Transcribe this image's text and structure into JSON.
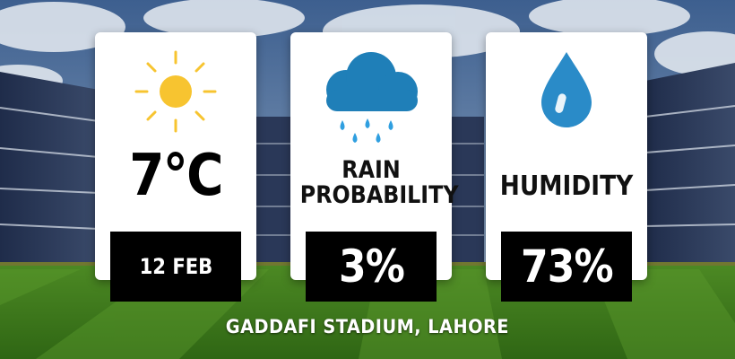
{
  "colors": {
    "sun": "#f7c430",
    "cloud": "#1f7fb8",
    "drop": "#2a8bc8",
    "badge": "#000000",
    "grass": "#3f7f1c"
  },
  "icons": [
    "sun-icon",
    "rain-cloud-icon",
    "water-drop-icon"
  ],
  "cards": {
    "temperature": {
      "value": "7°C",
      "date": "12 FEB"
    },
    "rain": {
      "title_line1": "RAIN",
      "title_line2": "PROBABILITY",
      "value": "3%"
    },
    "humidity": {
      "title": "HUMIDITY",
      "value": "73%"
    }
  },
  "venue": "GADDAFI STADIUM, LAHORE"
}
